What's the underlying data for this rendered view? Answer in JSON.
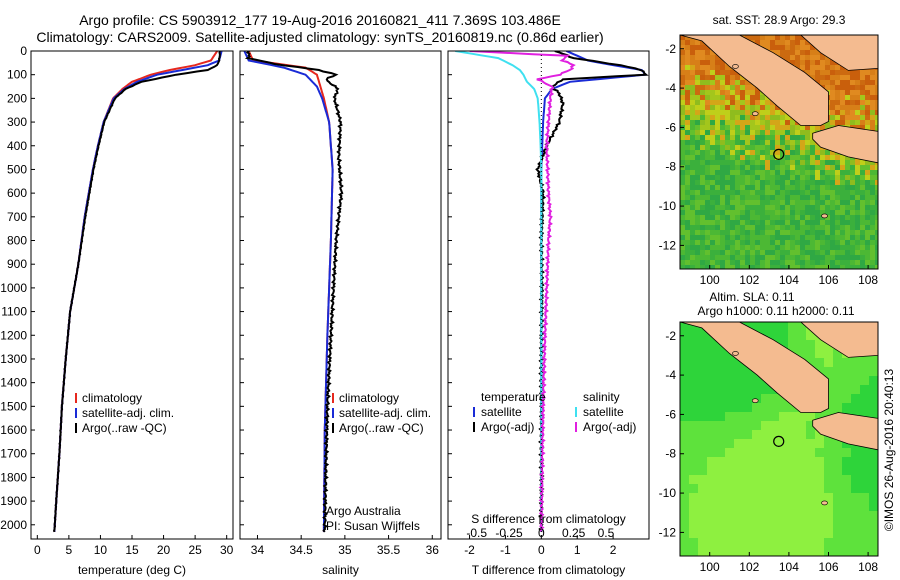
{
  "header": {
    "line1": "Argo profile: CS 5903912_177 19-Aug-2016 20160821_411 7.369S 103.486E",
    "line2": "Climatology: CARS2009. Satellite-adjusted climatology: synTS_20160819.nc (0.86d earlier)"
  },
  "colors": {
    "climatology": "#e6281e",
    "satellite": "#1a2bd6",
    "argo": "#000000",
    "sat_salinity": "#3fe0f0",
    "argo_salinity": "#e020e0",
    "land": "#f4bb90"
  },
  "depth_axis": {
    "ticks": [
      0,
      100,
      200,
      300,
      400,
      500,
      600,
      700,
      800,
      900,
      1000,
      1100,
      1200,
      1300,
      1400,
      1500,
      1600,
      1700,
      1800,
      1900,
      2000
    ],
    "range": [
      0,
      2060
    ]
  },
  "chart_data": [
    {
      "type": "line",
      "xlabel": "temperature (deg C)",
      "xlim": [
        -1,
        31
      ],
      "xticks": [
        "0",
        "5",
        "10",
        "15",
        "20",
        "25",
        "30"
      ],
      "xtick_values": [
        0,
        5,
        10,
        15,
        20,
        25,
        30
      ],
      "legend": [
        "climatology",
        "satellite-adj. clim.",
        "Argo(..raw -QC)"
      ],
      "series": [
        {
          "name": "climatology",
          "color": "#e6281e",
          "depth": [
            0,
            20,
            40,
            60,
            80,
            100,
            130,
            160,
            200,
            300,
            400,
            500,
            700,
            900,
            1100,
            1300,
            1500,
            1700,
            1900,
            2030
          ],
          "values": [
            28.5,
            28.0,
            27.5,
            25.0,
            21.0,
            18.0,
            15.0,
            13.5,
            12.0,
            10.5,
            9.6,
            8.8,
            7.5,
            6.5,
            5.2,
            4.5,
            3.9,
            3.5,
            3.0,
            2.7
          ]
        },
        {
          "name": "satellite-adj. clim.",
          "color": "#1a2bd6",
          "depth": [
            0,
            20,
            40,
            60,
            80,
            100,
            130,
            160,
            200,
            300,
            400,
            500,
            700,
            900,
            1100,
            1300,
            1500,
            1700,
            1900,
            2030
          ],
          "values": [
            29.2,
            29.0,
            28.8,
            27.0,
            23.0,
            19.0,
            15.8,
            13.8,
            12.1,
            10.5,
            9.6,
            8.8,
            7.5,
            6.5,
            5.2,
            4.5,
            3.9,
            3.5,
            3.0,
            2.7
          ]
        },
        {
          "name": "Argo(..raw -QC)",
          "color": "#000000",
          "depth": [
            0,
            20,
            40,
            60,
            80,
            100,
            130,
            160,
            200,
            300,
            400,
            500,
            700,
            900,
            1100,
            1300,
            1500,
            1700,
            1900,
            2030
          ],
          "values": [
            28.9,
            28.9,
            28.8,
            28.5,
            27.0,
            22.0,
            16.5,
            14.0,
            12.3,
            10.6,
            9.7,
            8.9,
            7.6,
            6.5,
            5.2,
            4.5,
            3.9,
            3.5,
            3.0,
            2.7
          ]
        }
      ]
    },
    {
      "type": "line",
      "xlabel": "salinity",
      "xlim": [
        33.8,
        36.1
      ],
      "xticks": [
        "34",
        "34.5",
        "35",
        "35.5",
        "36"
      ],
      "xtick_values": [
        34,
        34.5,
        35,
        35.5,
        36
      ],
      "legend": [
        "climatology",
        "satellite-adj. clim.",
        "Argo(..raw -QC)"
      ],
      "annotation": [
        "Argo Australia",
        "PI: Susan Wijffels"
      ],
      "series": [
        {
          "name": "climatology",
          "color": "#e6281e",
          "depth": [
            0,
            40,
            70,
            100,
            150,
            200,
            300,
            500,
            800,
            1200,
            1600,
            2030
          ],
          "values": [
            33.9,
            33.95,
            34.55,
            34.68,
            34.72,
            34.76,
            34.82,
            34.86,
            34.84,
            34.8,
            34.77,
            34.76
          ]
        },
        {
          "name": "satellite-adj. clim.",
          "color": "#1a2bd6",
          "depth": [
            0,
            40,
            70,
            100,
            150,
            200,
            300,
            500,
            800,
            1200,
            1600,
            2030
          ],
          "values": [
            33.85,
            33.9,
            34.3,
            34.55,
            34.68,
            34.74,
            34.82,
            34.86,
            34.84,
            34.8,
            34.77,
            34.76
          ]
        },
        {
          "name": "Argo(..raw -QC)",
          "color": "#000000",
          "depth": [
            0,
            30,
            55,
            80,
            100,
            120,
            160,
            200,
            300,
            450,
            600,
            800,
            1000,
            1200,
            1500,
            1800,
            2030
          ],
          "values": [
            33.9,
            33.9,
            34.2,
            34.7,
            34.9,
            34.78,
            34.92,
            34.88,
            34.95,
            34.93,
            34.96,
            34.9,
            34.87,
            34.84,
            34.8,
            34.78,
            34.77
          ]
        }
      ]
    },
    {
      "type": "line",
      "xlabel": "T difference from climatology",
      "xticklabel_top": "S difference from climatology",
      "xlim": [
        -2.6,
        3.0
      ],
      "xticks": [
        "-2",
        "-1",
        "0",
        "1",
        "2"
      ],
      "xtick_values": [
        -2,
        -1,
        0,
        1,
        2
      ],
      "top_ticks": [
        "-0.5",
        "-0.25",
        "0",
        "0.25",
        "0.5"
      ],
      "top_tick_values": [
        -1.8,
        -0.9,
        0,
        0.9,
        1.8
      ],
      "legend_temperature": "temperature",
      "legend_salinity": "salinity",
      "legend": [
        "satellite",
        "Argo(-adj)",
        "satellite",
        "Argo(-adj)"
      ],
      "series": [
        {
          "name": "satellite",
          "color": "#1a2bd6",
          "depth": [
            0,
            20,
            40,
            60,
            80,
            100,
            130,
            160,
            200,
            300,
            500,
            800,
            1200,
            1600,
            2030
          ],
          "values": [
            0.7,
            1.0,
            1.3,
            2.0,
            2.8,
            2.9,
            0.8,
            0.3,
            0.1,
            0.05,
            0,
            0,
            0,
            0,
            0
          ]
        },
        {
          "name": "Argo(-adj)",
          "color": "#000000",
          "depth": [
            0,
            30,
            60,
            80,
            100,
            120,
            150,
            180,
            220,
            300,
            400,
            500,
            600,
            800,
            1000,
            1200,
            1500,
            1800,
            2030
          ],
          "values": [
            0.4,
            0.9,
            2.2,
            2.8,
            2.9,
            0.6,
            0.3,
            0.5,
            0.6,
            0.5,
            0.15,
            -0.1,
            0.05,
            0,
            0.02,
            0,
            0,
            0,
            0
          ]
        },
        {
          "name": "satellite",
          "color": "#3fe0f0",
          "depth": [
            0,
            30,
            60,
            80,
            100,
            130,
            160,
            200,
            300,
            400,
            500,
            700,
            900,
            1200,
            1600,
            2030
          ],
          "values": [
            -2.4,
            -1.2,
            -0.8,
            -0.6,
            -0.5,
            -0.4,
            -0.2,
            -0.1,
            -0.05,
            -0.02,
            0,
            0,
            0,
            0,
            0,
            0
          ]
        },
        {
          "name": "Argo(-adj)",
          "color": "#e020e0",
          "depth": [
            0,
            20,
            40,
            60,
            80,
            100,
            120,
            150,
            200,
            300,
            400,
            600,
            700,
            800,
            1000,
            1200,
            1500,
            1800,
            2030
          ],
          "values": [
            -2.0,
            0.7,
            0.6,
            0.9,
            0.8,
            0.5,
            -0.1,
            0.3,
            0.25,
            0.2,
            0.15,
            0.2,
            0.25,
            0.2,
            0.15,
            0.1,
            0.05,
            0.02,
            0
          ]
        }
      ]
    },
    {
      "type": "heatmap",
      "title": "sat. SST: 28.9 Argo: 29.3",
      "xticks": [
        "100",
        "102",
        "104",
        "106",
        "108"
      ],
      "yticks": [
        "-2",
        "-4",
        "-6",
        "-8",
        "-10",
        "-12"
      ],
      "xtick_values": [
        100,
        102,
        104,
        106,
        108
      ],
      "ytick_values": [
        -2,
        -4,
        -6,
        -8,
        -10,
        -12
      ],
      "xlim": [
        98.5,
        108.5
      ],
      "ylim": [
        -13.2,
        -1.3
      ],
      "marker": [
        103.486,
        -7.369
      ]
    },
    {
      "type": "heatmap",
      "title_line1": "Altim. SLA: 0.11",
      "title_line2": "Argo h1000: 0.11 h2000: 0.11",
      "xticks": [
        "100",
        "102",
        "104",
        "106",
        "108"
      ],
      "yticks": [
        "-2",
        "-4",
        "-6",
        "-8",
        "-10",
        "-12"
      ],
      "xtick_values": [
        100,
        102,
        104,
        106,
        108
      ],
      "ytick_values": [
        -2,
        -4,
        -6,
        -8,
        -10,
        -12
      ],
      "xlim": [
        98.5,
        108.5
      ],
      "ylim": [
        -13.2,
        -1.3
      ],
      "marker": [
        103.486,
        -7.369
      ]
    }
  ],
  "credit": "©IMOS 26-Aug-2016 20:40:13"
}
